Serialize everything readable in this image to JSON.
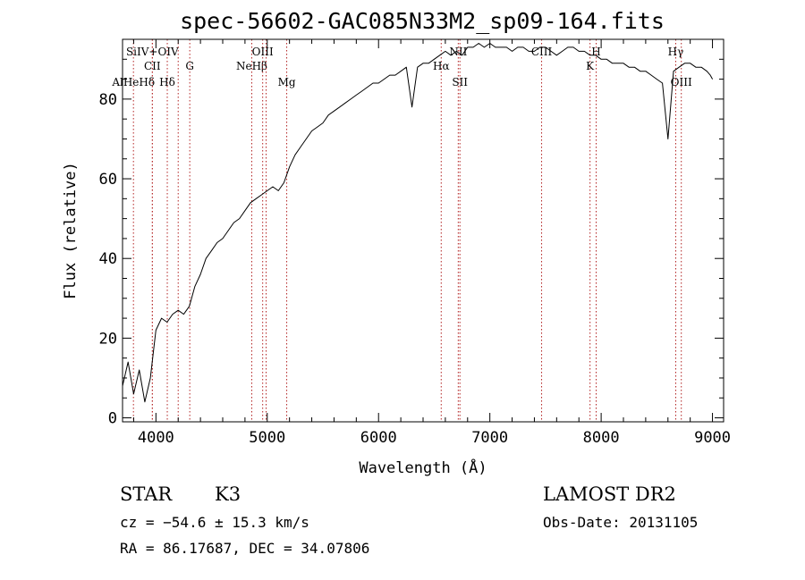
{
  "chart_data": {
    "type": "line",
    "title": "spec-56602-GAC085N33M2_sp09-164.fits",
    "xlabel": "Wavelength (Å)",
    "ylabel": "Flux (relative)",
    "xlim": [
      3700,
      9100
    ],
    "ylim": [
      -1,
      95
    ],
    "x_ticks": [
      4000,
      5000,
      6000,
      7000,
      8000,
      9000
    ],
    "y_ticks": [
      0,
      20,
      40,
      60,
      80
    ],
    "grid": false,
    "line_color": "#000000",
    "marker_color": "#b22222",
    "series": [
      {
        "x": [
          3700,
          3750,
          3800,
          3850,
          3900,
          3950,
          4000,
          4050,
          4100,
          4150,
          4200,
          4250,
          4300,
          4350,
          4400,
          4450,
          4500,
          4550,
          4600,
          4650,
          4700,
          4750,
          4800,
          4850,
          4900,
          4950,
          5000,
          5050,
          5100,
          5150,
          5200,
          5250,
          5300,
          5350,
          5400,
          5450,
          5500,
          5550,
          5600,
          5650,
          5700,
          5750,
          5800,
          5850,
          5900,
          5950,
          6000,
          6050,
          6100,
          6150,
          6200,
          6250,
          6300,
          6350,
          6400,
          6450,
          6500,
          6550,
          6600,
          6650,
          6700,
          6750,
          6800,
          6850,
          6900,
          6950,
          7000,
          7050,
          7100,
          7150,
          7200,
          7250,
          7300,
          7350,
          7400,
          7450,
          7500,
          7550,
          7600,
          7650,
          7700,
          7750,
          7800,
          7850,
          7900,
          7950,
          8000,
          8050,
          8100,
          8150,
          8200,
          8250,
          8300,
          8350,
          8400,
          8450,
          8500,
          8550,
          8600,
          8650,
          8700,
          8750,
          8800,
          8850,
          8900,
          8950,
          8980,
          9000
        ],
        "y": [
          8,
          14,
          6,
          12,
          4,
          10,
          22,
          25,
          24,
          26,
          27,
          26,
          28,
          33,
          36,
          40,
          42,
          44,
          45,
          47,
          49,
          50,
          52,
          54,
          55,
          56,
          57,
          58,
          57,
          59,
          63,
          66,
          68,
          70,
          72,
          73,
          74,
          76,
          77,
          78,
          79,
          80,
          81,
          82,
          83,
          84,
          84,
          85,
          86,
          86,
          87,
          88,
          78,
          88,
          89,
          89,
          90,
          91,
          92,
          91,
          92,
          91,
          93,
          93,
          94,
          93,
          94,
          93,
          93,
          93,
          92,
          93,
          93,
          92,
          92,
          93,
          93,
          92,
          91,
          92,
          93,
          93,
          92,
          92,
          91,
          91,
          90,
          90,
          89,
          89,
          89,
          88,
          88,
          87,
          87,
          86,
          85,
          84,
          70,
          87,
          88,
          89,
          89,
          88,
          88,
          87,
          86,
          85
        ]
      }
    ],
    "line_markers": [
      {
        "x": 3798,
        "label": "AlHeHδ",
        "row": 3
      },
      {
        "x": 3968,
        "label": "SiIV+OIV",
        "row": 0
      },
      {
        "x": 3968,
        "label": "CII",
        "row": 1
      },
      {
        "x": 4102,
        "label": "Hδ",
        "row": 2
      },
      {
        "x": 4200,
        "label": "",
        "row": -1
      },
      {
        "x": 4304,
        "label": "G",
        "row": 1
      },
      {
        "x": 4861,
        "label": "NeHβ",
        "row": 1
      },
      {
        "x": 4959,
        "label": "OIII",
        "row": 0
      },
      {
        "x": 4990,
        "label": "",
        "row": -1
      },
      {
        "x": 5175,
        "label": "Mg",
        "row": 3
      },
      {
        "x": 6563,
        "label": "Hα",
        "row": 1
      },
      {
        "x": 6716,
        "label": "NII",
        "row": 0
      },
      {
        "x": 6731,
        "label": "SII",
        "row": 2
      },
      {
        "x": 7465,
        "label": "CIII",
        "row": 0
      },
      {
        "x": 7900,
        "label": "K",
        "row": 1
      },
      {
        "x": 7955,
        "label": "H",
        "row": 0
      },
      {
        "x": 8670,
        "label": "Hγ",
        "row": 0
      },
      {
        "x": 8720,
        "label": "OIII",
        "row": 2
      }
    ]
  },
  "footer": {
    "object_class": "STAR",
    "subclass": "K3",
    "survey": "LAMOST DR2",
    "cz": "cz = −54.6 ± 15.3 km/s",
    "obs_date": "Obs-Date: 20131105",
    "coords": "RA =  86.17687, DEC =  34.07806"
  }
}
